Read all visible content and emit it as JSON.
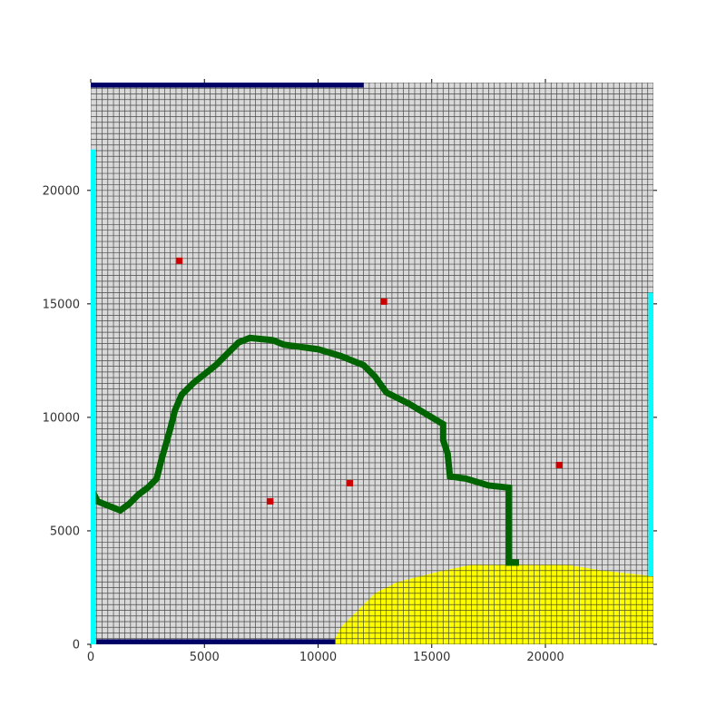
{
  "chart_data": {
    "type": "heatmap",
    "title": "",
    "xlabel": "",
    "ylabel": "",
    "xlim": [
      0,
      24750
    ],
    "ylim": [
      0,
      24750
    ],
    "cell_size": 250,
    "grid": true,
    "x_ticks": [
      0,
      5000,
      10000,
      15000,
      20000
    ],
    "y_ticks": [
      0,
      5000,
      10000,
      15000,
      20000
    ],
    "x_tick_labels": [
      "0",
      "5000",
      "10000",
      "15000",
      "20000"
    ],
    "y_tick_labels": [
      "0",
      "5000",
      "10000",
      "15000",
      "20000"
    ],
    "colors": {
      "grid_cell": "#d9d9d9",
      "grid_line": "#303030",
      "river": "#006400",
      "wells": "#cc0000",
      "constant_head_boundary": "#00ffff",
      "no_flow_boundary": "#000066",
      "lake": "#ffff00"
    },
    "layers": {
      "river_path": [
        [
          0,
          6900
        ],
        [
          300,
          6300
        ],
        [
          800,
          6100
        ],
        [
          1300,
          5900
        ],
        [
          1700,
          6200
        ],
        [
          2100,
          6600
        ],
        [
          2500,
          6900
        ],
        [
          2900,
          7300
        ],
        [
          3100,
          8100
        ],
        [
          3300,
          8800
        ],
        [
          3500,
          9500
        ],
        [
          3700,
          10300
        ],
        [
          4000,
          11000
        ],
        [
          4500,
          11500
        ],
        [
          5000,
          11900
        ],
        [
          5500,
          12300
        ],
        [
          6000,
          12800
        ],
        [
          6500,
          13300
        ],
        [
          7000,
          13500
        ],
        [
          8000,
          13400
        ],
        [
          8500,
          13200
        ],
        [
          10000,
          13000
        ],
        [
          11000,
          12700
        ],
        [
          12000,
          12300
        ],
        [
          12500,
          11800
        ],
        [
          13000,
          11100
        ],
        [
          14000,
          10600
        ],
        [
          15000,
          10000
        ],
        [
          15500,
          9700
        ],
        [
          15500,
          9000
        ],
        [
          15700,
          8400
        ],
        [
          15800,
          7400
        ],
        [
          16500,
          7300
        ],
        [
          17500,
          7000
        ],
        [
          18400,
          6900
        ],
        [
          18400,
          3600
        ],
        [
          18700,
          3600
        ]
      ],
      "wells": [
        {
          "x": 3900,
          "y": 16900
        },
        {
          "x": 12900,
          "y": 15100
        },
        {
          "x": 11400,
          "y": 7100
        },
        {
          "x": 7900,
          "y": 6300
        },
        {
          "x": 20600,
          "y": 7900
        }
      ],
      "constant_head_boundaries": [
        {
          "x": 100,
          "y0": 0,
          "y1": 21800
        },
        {
          "x": 24650,
          "y0": 3000,
          "y1": 15500
        }
      ],
      "no_flow_boundaries": [
        {
          "y": 24650,
          "x0": 0,
          "x1": 12000
        },
        {
          "y": 100,
          "x0": 250,
          "x1": 10750
        }
      ],
      "lake_outline": [
        [
          10750,
          0
        ],
        [
          10750,
          250
        ],
        [
          11000,
          750
        ],
        [
          11500,
          1250
        ],
        [
          12000,
          1750
        ],
        [
          12500,
          2250
        ],
        [
          13000,
          2500
        ],
        [
          13500,
          2750
        ],
        [
          14500,
          3000
        ],
        [
          15500,
          3250
        ],
        [
          16750,
          3500
        ],
        [
          19000,
          3500
        ],
        [
          21000,
          3500
        ],
        [
          22500,
          3250
        ],
        [
          24750,
          3000
        ],
        [
          24750,
          0
        ]
      ]
    }
  }
}
